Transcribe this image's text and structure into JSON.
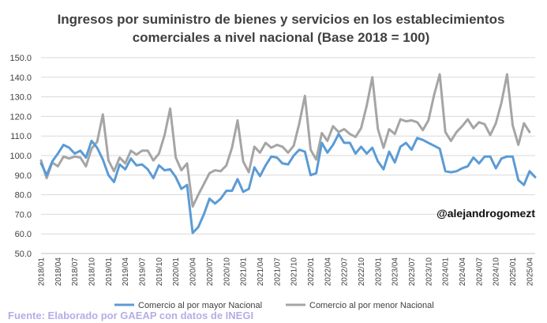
{
  "chart_data": {
    "type": "line",
    "title_lines": [
      "Ingresos por suministro de bienes y servicios en los establecimientos",
      "comerciales a nivel nacional (Base 2018 = 100)"
    ],
    "xlabel": "",
    "ylabel": "",
    "ylim": [
      50,
      150
    ],
    "yticks": [
      "150.0",
      "140.0",
      "130.0",
      "120.0",
      "110.0",
      "100.0",
      "90.0",
      "80.0",
      "70.0",
      "60.0",
      "50.0"
    ],
    "x_tick_labels": [
      "2018/01",
      "2018/04",
      "2018/07",
      "2018/10",
      "2019/01",
      "2019/04",
      "2019/07",
      "2019/10",
      "2020/01",
      "2020/04",
      "2020/07",
      "2020/10",
      "2021/01",
      "2021/04",
      "2021/07",
      "2021/10",
      "2022/01",
      "2022/04",
      "2022/07",
      "2022/10",
      "2023/01",
      "2023/04",
      "2023/07",
      "2023/10",
      "2024/01",
      "2024/04",
      "2024/07",
      "2024/10",
      "2025/01",
      "2025/04"
    ],
    "grid": "horizontal",
    "legend_position": "bottom",
    "series": [
      {
        "name": "Comercio al por mayor Nacional",
        "color": "#5b9bd5",
        "values": [
          96,
          90,
          97,
          101,
          105.5,
          104,
          101,
          102.5,
          99,
          107.5,
          104,
          98,
          90,
          86.5,
          95.5,
          93,
          98.5,
          95,
          95.5,
          93,
          88.5,
          95,
          92.5,
          93,
          89,
          83,
          85,
          60.5,
          63.5,
          70,
          78,
          75.5,
          78,
          82,
          82,
          88,
          81.5,
          83,
          94,
          89.5,
          95,
          99.5,
          99,
          96,
          95.5,
          100,
          103,
          102,
          90,
          91,
          106.5,
          101.5,
          105.5,
          111,
          106.5,
          106.5,
          101,
          104.5,
          101,
          104,
          97,
          93,
          102,
          96.5,
          104.5,
          106.5,
          103,
          109,
          108,
          106.5,
          105,
          103.5,
          92,
          91.5,
          92,
          93.5,
          94.5,
          99,
          96,
          99.5,
          99.5,
          93.5,
          98.5,
          99.5,
          99.5,
          87.5,
          85,
          92,
          89
        ]
      },
      {
        "name": "Comercio al por menor Nacional",
        "color": "#a5a5a5",
        "values": [
          97.5,
          88.5,
          96.5,
          94.5,
          99.5,
          98.5,
          99.5,
          99,
          94.5,
          103.5,
          107,
          121,
          97.5,
          92,
          99,
          96,
          102.5,
          100.5,
          102.5,
          102.5,
          97.5,
          101,
          110.5,
          124,
          99,
          92.5,
          96,
          74,
          80,
          85.5,
          91,
          92.5,
          92,
          95,
          104,
          118,
          97,
          91.5,
          104.5,
          101.5,
          106.5,
          104,
          105.5,
          104.5,
          101.5,
          105,
          116.5,
          130.5,
          103,
          98,
          111.5,
          107.5,
          115,
          112,
          113.5,
          111,
          109.5,
          114,
          125.5,
          140,
          113.5,
          104,
          113.5,
          111,
          118.5,
          117.5,
          118,
          117,
          113,
          118,
          131,
          141.5,
          112,
          107.5,
          112,
          115,
          118.5,
          114,
          117,
          116,
          110.5,
          116.5,
          127,
          141.5,
          115.5,
          105.5,
          116.5,
          112
        ]
      }
    ]
  },
  "annotations": {
    "watermark": "@alejandrogomezt",
    "source": "Fuente: Elaborado por GAEAP con datos de INEGI"
  }
}
